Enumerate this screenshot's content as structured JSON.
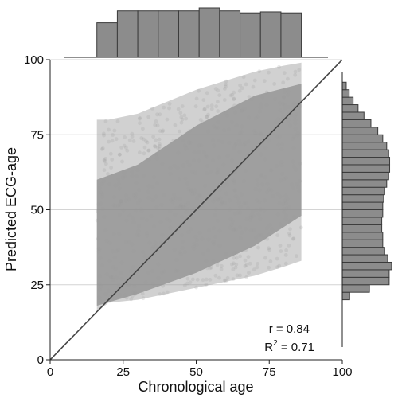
{
  "chart_data": {
    "type": "scatter",
    "title": "",
    "xlabel": "Chronological age",
    "ylabel": "Predicted ECG-age",
    "xlim": [
      0,
      100
    ],
    "ylim": [
      0,
      100
    ],
    "x_ticks": [
      0,
      25,
      50,
      75,
      100
    ],
    "y_ticks": [
      0,
      25,
      50,
      75,
      100
    ],
    "grid": "horizontal",
    "reference_line": {
      "type": "identity",
      "from": [
        0,
        0
      ],
      "to": [
        100,
        100
      ],
      "color": "#444444"
    },
    "point_color": "#9a9a9a",
    "histogram_color": "#8c8c8c",
    "scatter_extent": {
      "x_range": [
        16,
        86
      ],
      "lower_edge": [
        [
          16,
          16
        ],
        [
          20,
          19
        ],
        [
          30,
          20
        ],
        [
          40,
          22
        ],
        [
          50,
          24
        ],
        [
          60,
          26
        ],
        [
          70,
          28
        ],
        [
          80,
          31
        ],
        [
          86,
          33
        ]
      ],
      "upper_edge": [
        [
          16,
          80
        ],
        [
          20,
          80
        ],
        [
          30,
          82
        ],
        [
          40,
          86
        ],
        [
          50,
          90
        ],
        [
          60,
          93
        ],
        [
          70,
          96
        ],
        [
          80,
          98
        ],
        [
          86,
          99
        ]
      ],
      "dense_lower": [
        [
          16,
          18
        ],
        [
          30,
          22
        ],
        [
          50,
          29
        ],
        [
          70,
          38
        ],
        [
          86,
          48
        ]
      ],
      "dense_upper": [
        [
          16,
          60
        ],
        [
          30,
          65
        ],
        [
          50,
          78
        ],
        [
          70,
          88
        ],
        [
          86,
          92
        ]
      ]
    },
    "x_histogram": {
      "bins": [
        [
          16,
          23
        ],
        [
          23,
          30
        ],
        [
          30,
          37
        ],
        [
          37,
          44
        ],
        [
          44,
          51
        ],
        [
          51,
          58
        ],
        [
          58,
          65
        ],
        [
          65,
          72
        ],
        [
          72,
          79
        ],
        [
          79,
          86
        ]
      ],
      "counts": [
        0.7,
        0.94,
        0.94,
        0.94,
        0.94,
        1.0,
        0.94,
        0.9,
        0.92,
        0.9
      ]
    },
    "y_histogram": {
      "bins": [
        [
          20,
          22.5
        ],
        [
          22.5,
          25
        ],
        [
          25,
          27.5
        ],
        [
          27.5,
          30
        ],
        [
          30,
          32.5
        ],
        [
          32.5,
          35
        ],
        [
          35,
          37.5
        ],
        [
          37.5,
          40
        ],
        [
          40,
          42.5
        ],
        [
          42.5,
          45
        ],
        [
          45,
          47.5
        ],
        [
          47.5,
          50
        ],
        [
          50,
          52.5
        ],
        [
          52.5,
          55
        ],
        [
          55,
          57.5
        ],
        [
          57.5,
          60
        ],
        [
          60,
          62.5
        ],
        [
          62.5,
          65
        ],
        [
          65,
          67.5
        ],
        [
          67.5,
          70
        ],
        [
          70,
          72.5
        ],
        [
          72.5,
          75
        ],
        [
          75,
          77.5
        ],
        [
          77.5,
          80
        ],
        [
          80,
          82.5
        ],
        [
          82.5,
          85
        ],
        [
          85,
          87.5
        ],
        [
          87.5,
          90
        ],
        [
          90,
          92.5
        ]
      ],
      "counts": [
        0.15,
        0.55,
        0.95,
        0.95,
        1.0,
        0.92,
        0.86,
        0.82,
        0.82,
        0.8,
        0.8,
        0.82,
        0.82,
        0.84,
        0.86,
        0.9,
        0.94,
        0.96,
        0.96,
        0.94,
        0.9,
        0.82,
        0.72,
        0.58,
        0.44,
        0.32,
        0.22,
        0.14,
        0.08
      ]
    },
    "annotations": {
      "r": "r = 0.84",
      "r2_prefix": "R",
      "r2_sup": "2",
      "r2_suffix": " = 0.71"
    }
  }
}
